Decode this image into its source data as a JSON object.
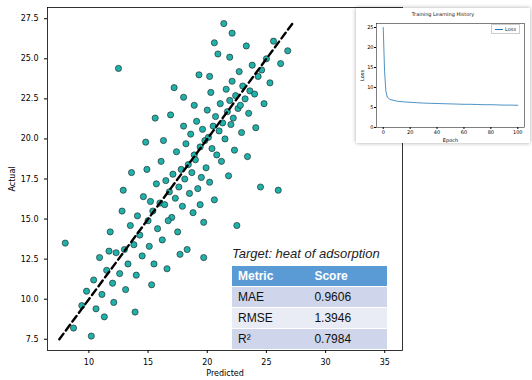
{
  "chart_data": [
    {
      "type": "scatter",
      "x_label": "Predicted",
      "y_label": "Actual",
      "xlim": [
        6.5,
        36.5
      ],
      "ylim": [
        6.8,
        28.2
      ],
      "xticks": [
        10,
        15,
        20,
        25,
        30,
        35
      ],
      "yticks": [
        7.5,
        {
          "value": 10,
          "label": "10.0"
        },
        12.5,
        {
          "value": 15,
          "label": "15.0"
        },
        17.5,
        {
          "value": 20,
          "label": "20.0"
        },
        22.5,
        {
          "value": 25,
          "label": "25.0"
        },
        27.5
      ],
      "grid": false,
      "series": [
        {
          "type": "scatter",
          "color": "#20b2aa",
          "marker": "circle",
          "x": [
            8.0,
            8.7,
            9.4,
            9.8,
            10.2,
            10.4,
            10.6,
            10.9,
            11.1,
            11.3,
            11.5,
            11.8,
            12.0,
            12.1,
            12.3,
            12.5,
            12.6,
            12.8,
            13.0,
            13.1,
            13.3,
            13.5,
            13.6,
            13.8,
            14.0,
            14.1,
            14.3,
            14.5,
            14.6,
            14.8,
            15.0,
            15.1,
            15.2,
            15.4,
            15.5,
            15.7,
            15.8,
            16.0,
            16.1,
            16.2,
            16.4,
            16.5,
            16.6,
            16.8,
            16.9,
            17.0,
            17.1,
            17.3,
            17.4,
            17.5,
            17.6,
            17.8,
            17.9,
            18.0,
            18.1,
            18.2,
            18.3,
            18.4,
            18.5,
            18.6,
            18.7,
            18.8,
            18.9,
            19.0,
            19.1,
            19.2,
            19.3,
            19.4,
            19.5,
            19.6,
            19.7,
            19.8,
            19.9,
            20.0,
            20.1,
            20.2,
            20.3,
            20.4,
            20.5,
            20.6,
            20.7,
            20.8,
            20.9,
            21.0,
            21.1,
            21.2,
            21.3,
            21.4,
            21.5,
            21.6,
            21.7,
            21.8,
            21.9,
            22.0,
            22.1,
            22.2,
            22.3,
            22.4,
            22.5,
            22.6,
            22.7,
            22.8,
            22.9,
            23.0,
            23.2,
            23.3,
            23.5,
            23.6,
            23.8,
            24.0,
            24.1,
            24.3,
            24.5,
            24.6,
            24.8,
            25.0,
            25.3,
            25.6,
            26.0,
            26.2,
            26.8,
            15.6,
            17.2,
            16.3,
            14.9,
            13.9,
            12.9,
            19.7,
            20.6,
            18.0,
            21.9,
            23.4,
            17.7,
            15.3,
            11.7,
            22.1,
            20.2,
            18.9,
            16.7,
            19.4
          ],
          "values": [
            13.5,
            8.2,
            9.6,
            10.5,
            7.7,
            11.2,
            9.4,
            12.6,
            10.3,
            8.9,
            11.8,
            14.2,
            11.0,
            9.8,
            12.9,
            24.4,
            11.6,
            15.5,
            13.1,
            10.6,
            12.2,
            14.6,
            17.9,
            13.4,
            11.5,
            15.2,
            14.0,
            12.7,
            16.4,
            19.8,
            14.9,
            13.3,
            16.1,
            15.5,
            12.2,
            17.2,
            14.4,
            16.0,
            18.6,
            13.7,
            15.9,
            17.4,
            11.9,
            16.7,
            21.5,
            15.1,
            17.8,
            16.3,
            19.2,
            14.2,
            17.0,
            18.1,
            15.8,
            22.6,
            17.5,
            19.7,
            13.1,
            18.4,
            16.6,
            20.3,
            17.9,
            15.4,
            19.0,
            18.7,
            21.1,
            16.9,
            24.0,
            19.5,
            17.6,
            20.6,
            14.8,
            19.9,
            18.2,
            21.8,
            20.1,
            17.3,
            22.9,
            19.4,
            20.8,
            16.2,
            21.4,
            19.0,
            25.3,
            20.5,
            22.2,
            18.6,
            21.0,
            27.2,
            20.0,
            23.1,
            21.7,
            17.7,
            22.4,
            20.9,
            23.6,
            21.3,
            19.3,
            22.7,
            14.6,
            21.9,
            24.2,
            22.1,
            20.4,
            23.3,
            22.5,
            25.8,
            21.6,
            23.0,
            24.6,
            22.8,
            20.7,
            23.9,
            17.0,
            24.3,
            22.2,
            25.0,
            23.5,
            26.1,
            16.8,
            24.7,
            25.5,
            21.3,
            23.2,
            19.9,
            18.1,
            9.2,
            16.8,
            12.6,
            26.0,
            20.8,
            25.1,
            18.9,
            12.8,
            10.9,
            13.0,
            26.6,
            23.9,
            22.1,
            14.9,
            15.9
          ]
        },
        {
          "type": "line",
          "color": "#000000",
          "line_style": "dashed",
          "x": [
            7.5,
            27.3
          ],
          "values": [
            7.5,
            27.3
          ]
        }
      ],
      "annotations": [
        {
          "text": "Target: heat of adsorption"
        }
      ],
      "table": {
        "header": [
          "Metric",
          "Score"
        ],
        "rows": [
          [
            "MAE",
            0.9606
          ],
          [
            "RMSE",
            1.3946
          ],
          [
            "R²",
            0.7984
          ]
        ]
      }
    },
    {
      "type": "line",
      "title": "Training Learning History",
      "x_label": "Epoch",
      "y_label": "Loss",
      "x": [
        0,
        1,
        2,
        3,
        5,
        10,
        15,
        20,
        25,
        30,
        35,
        40,
        45,
        50,
        55,
        60,
        65,
        70,
        75,
        80,
        85,
        90,
        95,
        100
      ],
      "xlim": [
        -5,
        105
      ],
      "ylim": [
        0,
        26
      ],
      "xticks": [
        0,
        20,
        40,
        60,
        80,
        100
      ],
      "yticks": [
        0,
        5,
        10,
        15,
        20,
        25
      ],
      "legend": "upper right",
      "series": [
        {
          "name": "Loss",
          "color": "#1f77b4",
          "values": [
            25.0,
            14.0,
            9.0,
            7.6,
            7.0,
            6.6,
            6.4,
            6.3,
            6.2,
            6.1,
            6.05,
            6.0,
            5.95,
            5.9,
            5.85,
            5.8,
            5.8,
            5.75,
            5.7,
            5.7,
            5.65,
            5.6,
            5.6,
            5.55
          ]
        }
      ]
    }
  ]
}
